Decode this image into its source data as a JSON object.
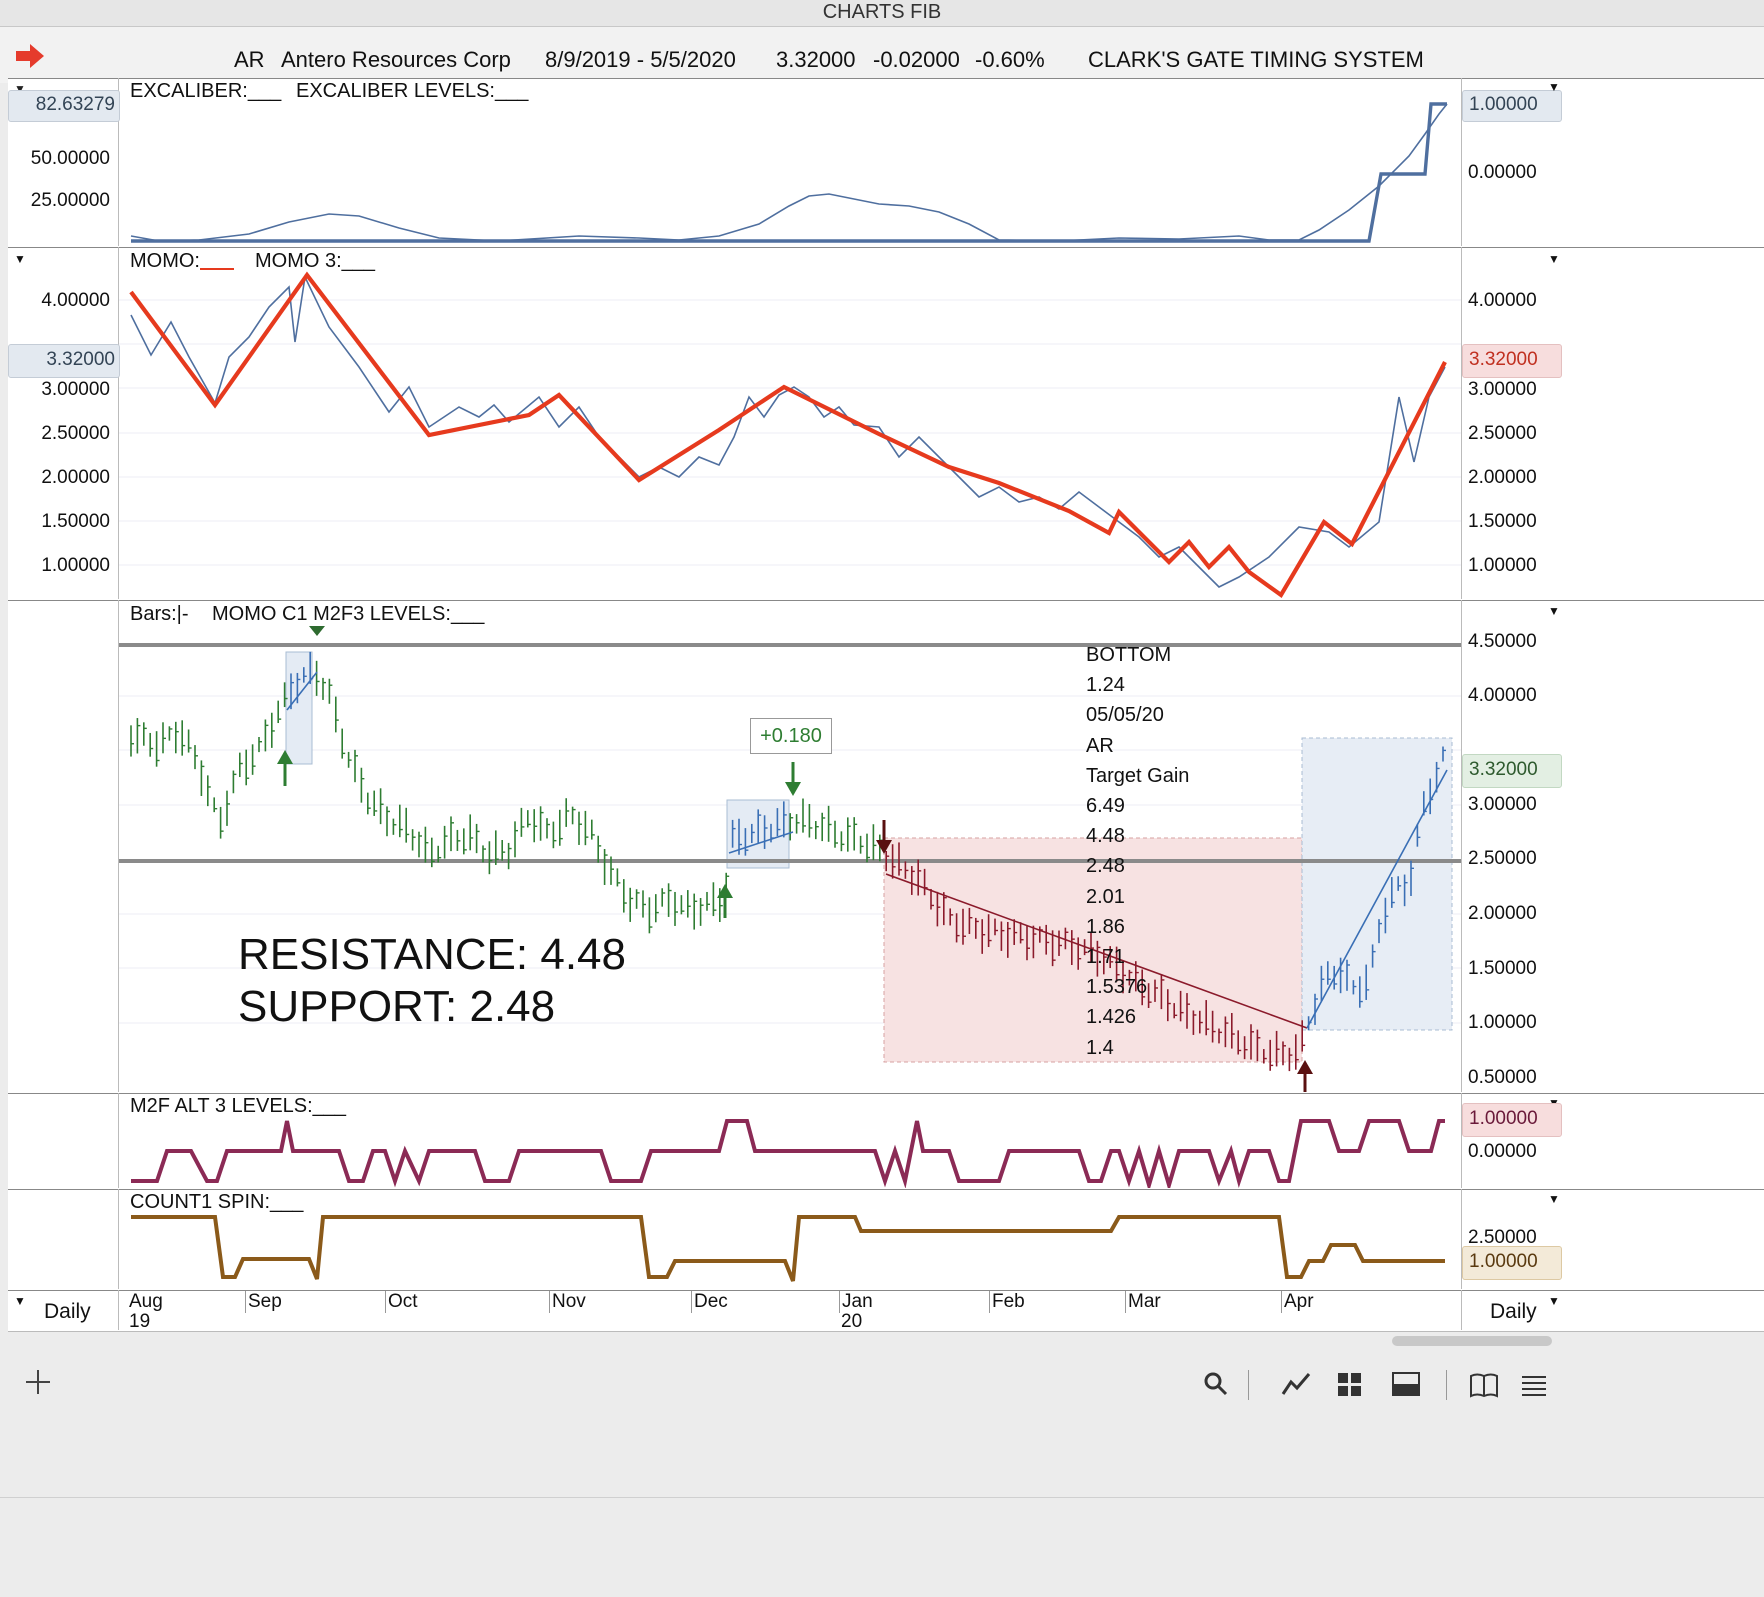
{
  "window": {
    "title": "CHARTS FIB"
  },
  "header": {
    "symbol": "AR",
    "company": "Antero Resources Corp",
    "date_range": "8/9/2019 - 5/5/2020",
    "price": "3.32000",
    "change": "-0.02000",
    "change_pct": "-0.60%",
    "system": "CLARK'S GATE TIMING SYSTEM"
  },
  "pane1": {
    "label1": "EXCALIBER:___",
    "label2": "EXCALIBER LEVELS:___",
    "left_highlight": "82.63279",
    "left_ticks": [
      "50.00000",
      "25.00000"
    ],
    "right_highlight": "1.00000",
    "right_ticks": [
      "0.00000"
    ]
  },
  "pane2": {
    "label1": "MOMO:",
    "label2": "MOMO 3:___",
    "left_ticks": [
      "4.00000",
      "3.00000",
      "2.50000",
      "2.00000",
      "1.50000",
      "1.00000"
    ],
    "left_highlight": "3.32000",
    "right_ticks": [
      "4.00000",
      "3.00000",
      "2.50000",
      "2.00000",
      "1.50000",
      "1.00000"
    ],
    "right_highlight": "3.32000",
    "colors": {
      "momo": "#e63a1e",
      "momo3": "#4f6f9f"
    }
  },
  "pane3": {
    "label1": "Bars:|-",
    "label2": "MOMO C1 M2F3 LEVELS:___",
    "right_ticks": [
      "4.50000",
      "4.00000",
      "3.00000",
      "2.50000",
      "2.00000",
      "1.50000",
      "1.00000",
      "0.50000"
    ],
    "right_highlight": "3.32000",
    "gain_badge": "+0.180",
    "resistance_text": "RESISTANCE: 4.48",
    "support_text": "SUPPORT: 2.48",
    "fib_list": [
      "BOTTOM",
      "1.24",
      "05/05/20",
      "AR",
      "Target Gain",
      "6.49",
      "4.48",
      "2.48",
      "2.01",
      "1.86",
      "1.71",
      "1.5376",
      "1.426",
      "1.4"
    ],
    "levels": {
      "resistance": 4.48,
      "support": 2.48
    },
    "colors": {
      "up_bars": "#2e7d32",
      "down_bars": "#8b1a2b",
      "rally_bars": "#3a6fb5"
    }
  },
  "pane4": {
    "label1": "M2F ALT 3 LEVELS:___",
    "right_ticks": [
      "0.00000"
    ],
    "right_highlight": "1.00000",
    "color": "#8b2a55"
  },
  "pane5": {
    "label1": "COUNT1 SPIN:___",
    "right_ticks": [
      "2.50000"
    ],
    "right_highlight": "1.00000",
    "color": "#8b5a1a"
  },
  "xaxis": {
    "months": [
      "Aug",
      "Sep",
      "Oct",
      "Nov",
      "Dec",
      "Jan",
      "Feb",
      "Mar",
      "Apr"
    ],
    "years": [
      "19",
      "20"
    ],
    "left_period": "Daily",
    "right_period": "Daily"
  },
  "toolbar": {
    "icons": [
      "plus-icon",
      "search-icon",
      "line-chart-icon",
      "grid-icon",
      "panel-icon",
      "book-icon",
      "menu-icon"
    ]
  }
}
